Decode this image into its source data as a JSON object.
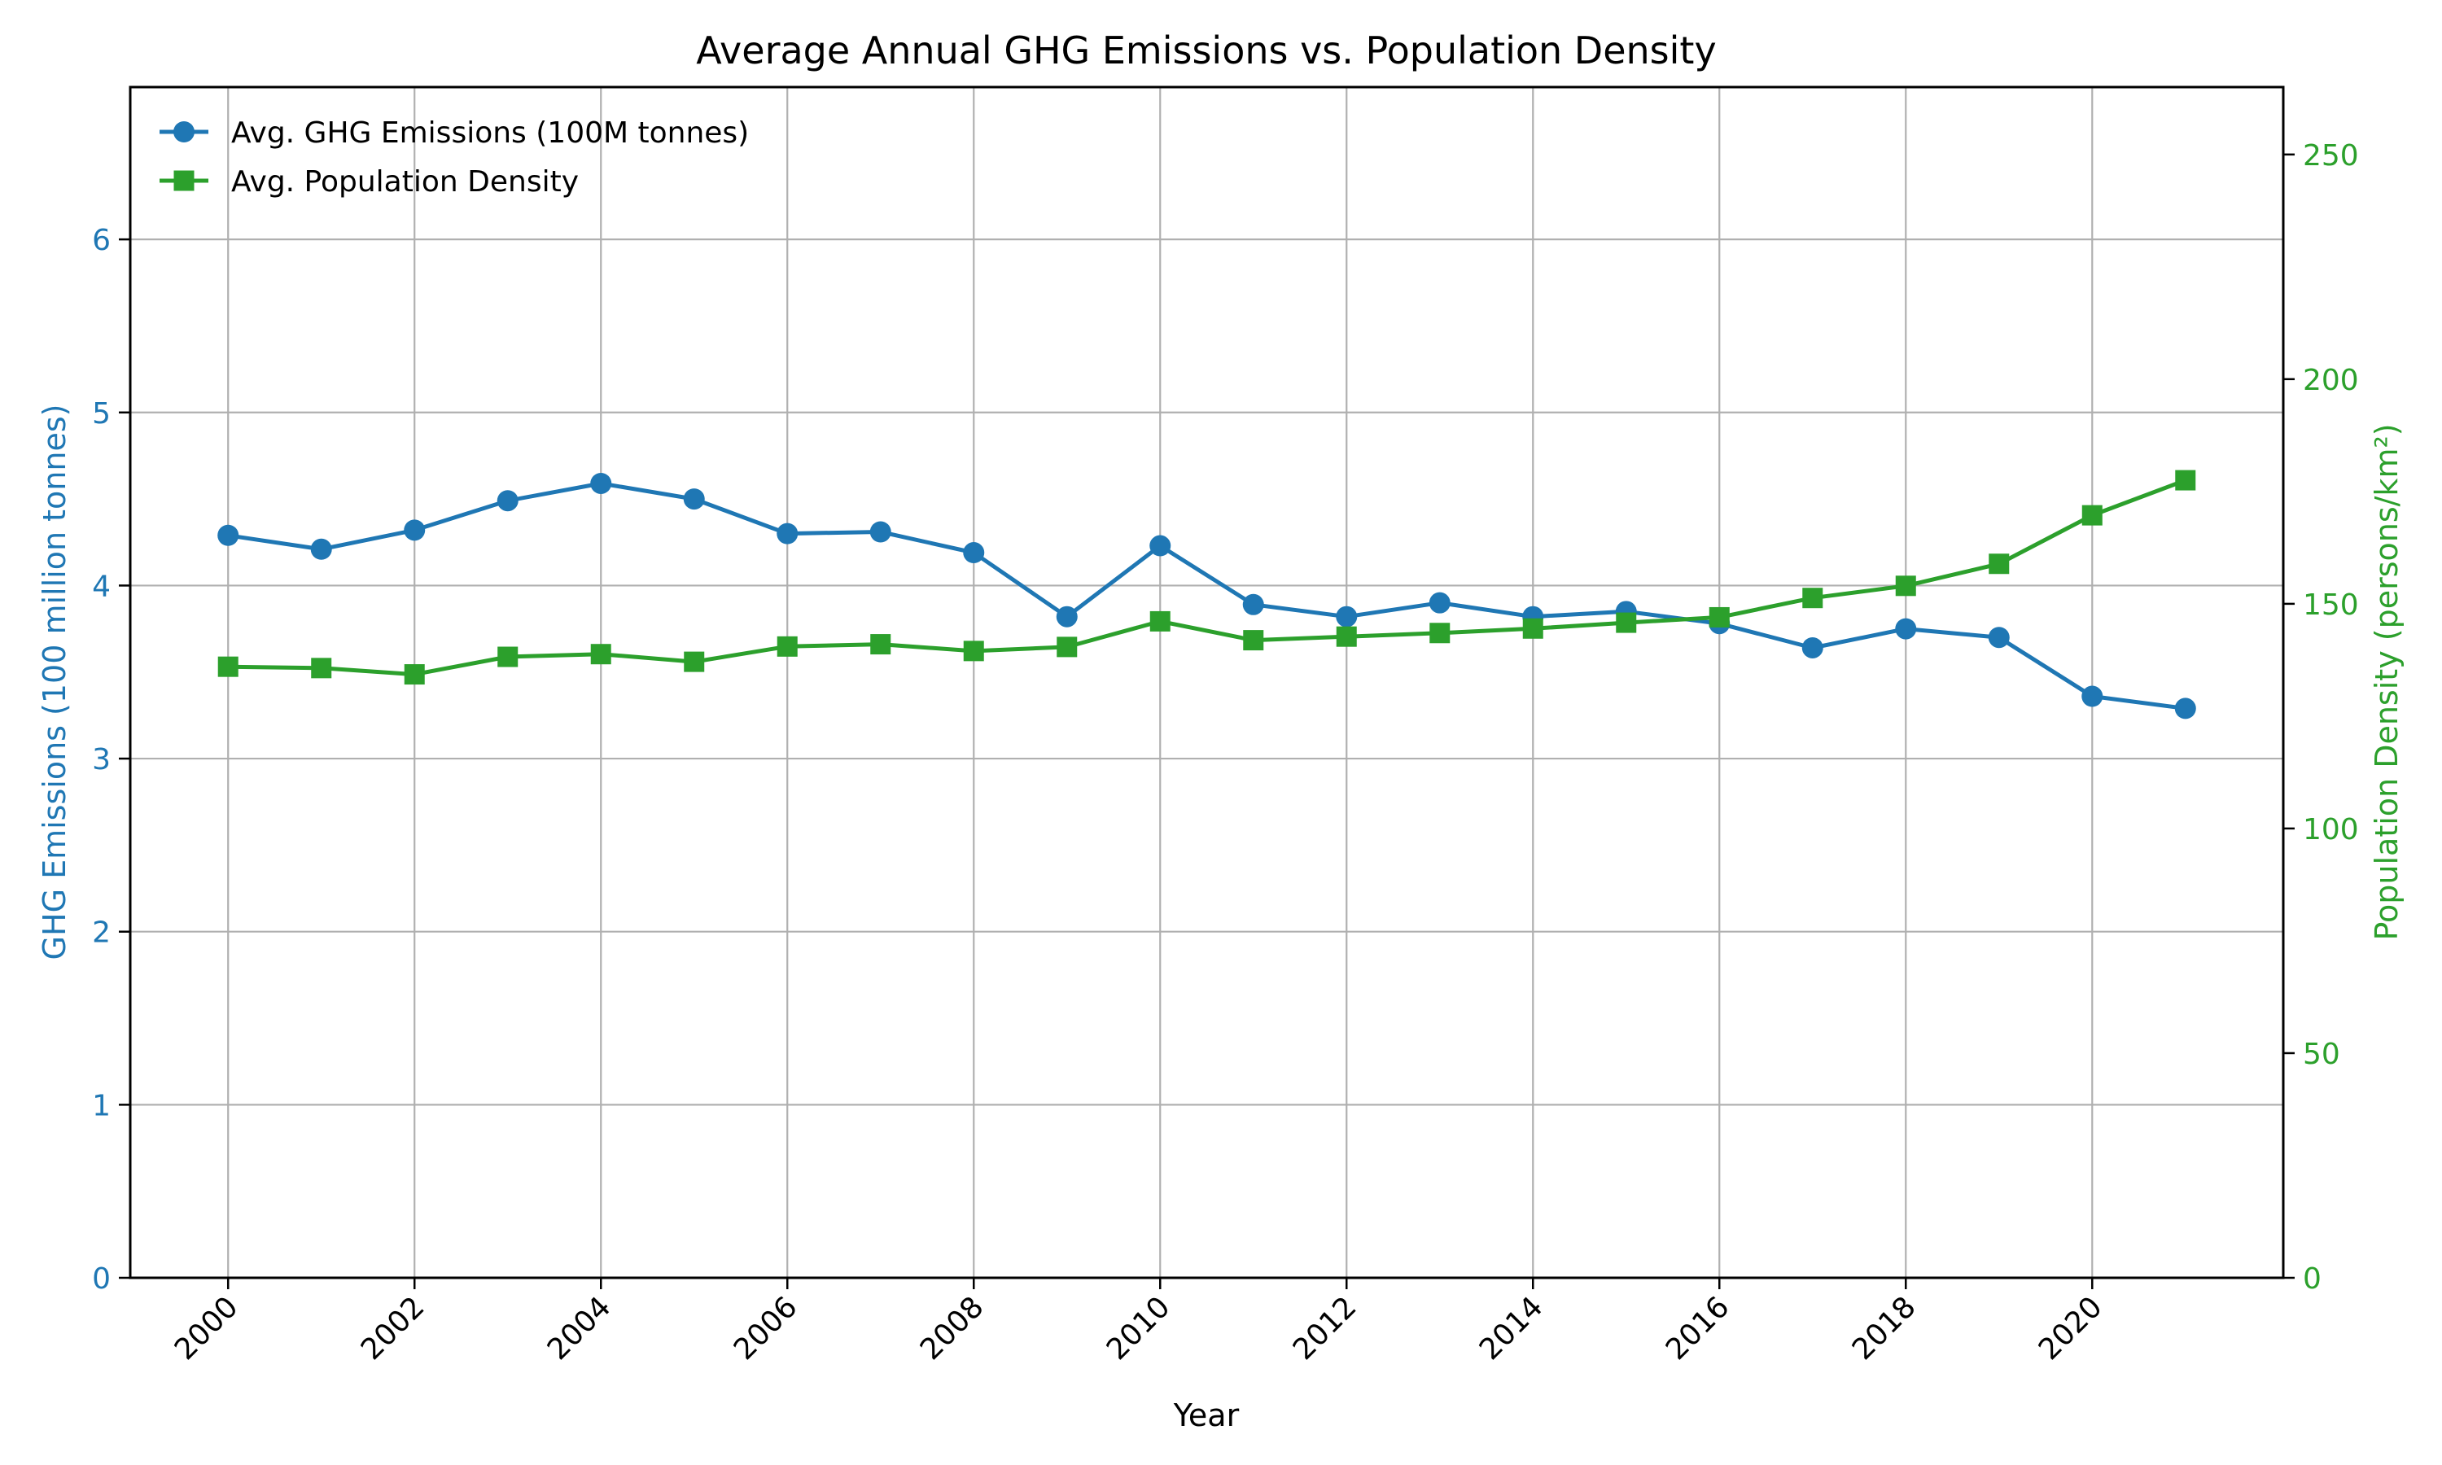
{
  "chart_data": {
    "type": "line",
    "title": "Average Annual GHG Emissions vs. Population Density",
    "xlabel": "Year",
    "x": [
      2000,
      2001,
      2002,
      2003,
      2004,
      2005,
      2006,
      2007,
      2008,
      2009,
      2010,
      2011,
      2012,
      2013,
      2014,
      2015,
      2016,
      2017,
      2018,
      2019,
      2020,
      2021
    ],
    "x_ticks": [
      "2000",
      "2002",
      "2004",
      "2006",
      "2008",
      "2010",
      "2012",
      "2014",
      "2016",
      "2018",
      "2020"
    ],
    "xlim": [
      1998.95,
      2022.05
    ],
    "left_axis": {
      "label": "GHG Emissions (100 million tonnes)",
      "ylim": [
        0,
        6.88
      ],
      "ticks": [
        "0",
        "1",
        "2",
        "3",
        "4",
        "5",
        "6"
      ],
      "color": "#1f77b4"
    },
    "right_axis": {
      "label": "Population Density (persons/km²)",
      "ylim": [
        0,
        265
      ],
      "ticks": [
        "0",
        "50",
        "100",
        "150",
        "200",
        "250"
      ],
      "color": "#2ca02c"
    },
    "series": [
      {
        "name": "Avg. GHG Emissions (100M tonnes)",
        "axis": "left",
        "color": "#1f77b4",
        "marker": "circle",
        "values": [
          4.29,
          4.21,
          4.32,
          4.49,
          4.59,
          4.5,
          4.3,
          4.31,
          4.19,
          3.82,
          4.23,
          3.89,
          3.82,
          3.9,
          3.82,
          3.85,
          3.78,
          3.64,
          3.75,
          3.7,
          3.36,
          3.29
        ]
      },
      {
        "name": "Avg. Population Density",
        "axis": "right",
        "color": "#2ca02c",
        "marker": "square",
        "values": [
          136.0,
          135.7,
          134.3,
          138.2,
          138.8,
          137.1,
          140.5,
          141.0,
          139.5,
          140.4,
          146.1,
          141.9,
          142.7,
          143.5,
          144.5,
          145.8,
          147.0,
          151.3,
          154.0,
          158.9,
          169.7,
          177.5
        ]
      }
    ],
    "grid": true,
    "legend_position": "top-left"
  }
}
